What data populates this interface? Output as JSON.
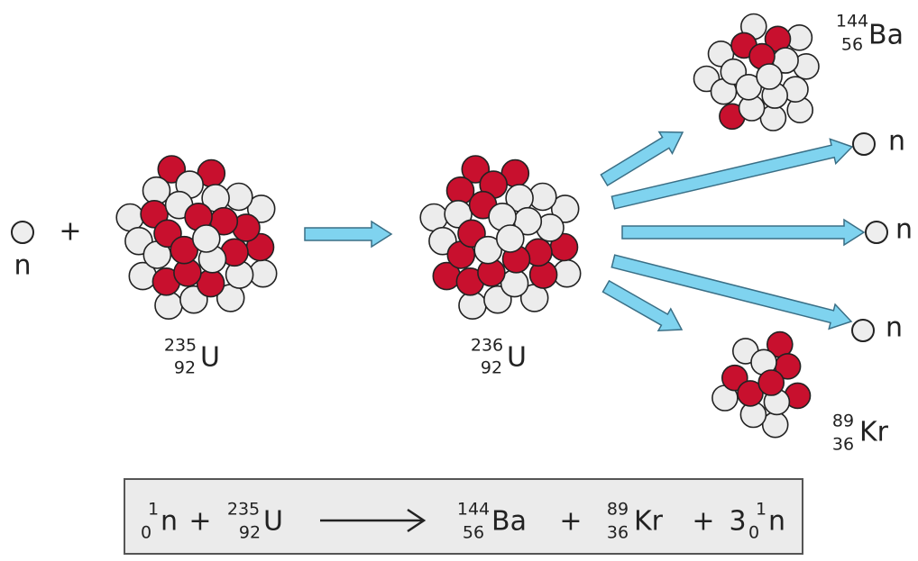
{
  "reactants": {
    "neutron": {
      "symbol": "n"
    },
    "plus": "+",
    "uranium": {
      "mass": "235",
      "atomic": "92",
      "symbol": "U"
    }
  },
  "intermediate": {
    "mass": "236",
    "atomic": "92",
    "symbol": "U"
  },
  "products": {
    "barium": {
      "mass": "144",
      "atomic": "56",
      "symbol": "Ba"
    },
    "krypton": {
      "mass": "89",
      "atomic": "36",
      "symbol": "Kr"
    },
    "neutrons": [
      "n",
      "n",
      "n"
    ]
  },
  "equation": {
    "neutron": {
      "mass": "1",
      "atomic": "0",
      "symbol": "n"
    },
    "plus1": "+",
    "uranium": {
      "mass": "235",
      "atomic": "92",
      "symbol": "U"
    },
    "barium": {
      "mass": "144",
      "atomic": "56",
      "symbol": "Ba"
    },
    "plus2": "+",
    "krypton": {
      "mass": "89",
      "atomic": "36",
      "symbol": "Kr"
    },
    "plus3": "+",
    "coefficient": "3",
    "product_neutron": {
      "mass": "1",
      "atomic": "0",
      "symbol": "n"
    }
  }
}
